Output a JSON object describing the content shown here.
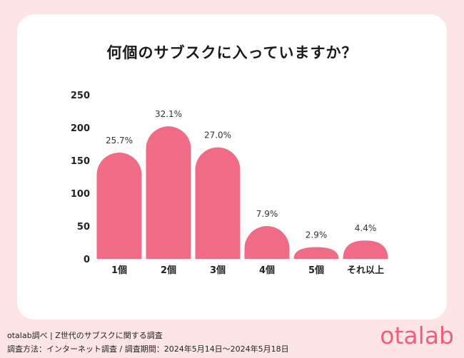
{
  "chart_data": {
    "type": "bar",
    "title": "何個のサブスクに入っていますか？",
    "categories": [
      "1個",
      "2個",
      "3個",
      "4個",
      "5個",
      "それ以上"
    ],
    "values": [
      162,
      202,
      170,
      50,
      18,
      28
    ],
    "data_labels": [
      "25.7%",
      "32.1%",
      "27.0%",
      "7.9%",
      "2.9%",
      "4.4%"
    ],
    "y_ticks": [
      "0",
      "50",
      "100",
      "150",
      "200",
      "250"
    ],
    "ylim": [
      0,
      250
    ],
    "xlabel": "",
    "ylabel": "",
    "grid": false,
    "bar_color": "#f06b86"
  },
  "footer": {
    "source": "otalab調べ | Z世代のサブスクに関する調査",
    "method": "調査方法：インターネット調査 / 調査期間：2024年5月14日〜2024年5月18日"
  },
  "brand": {
    "logo_text": "otalab",
    "logo_color": "#ef5f7d"
  }
}
